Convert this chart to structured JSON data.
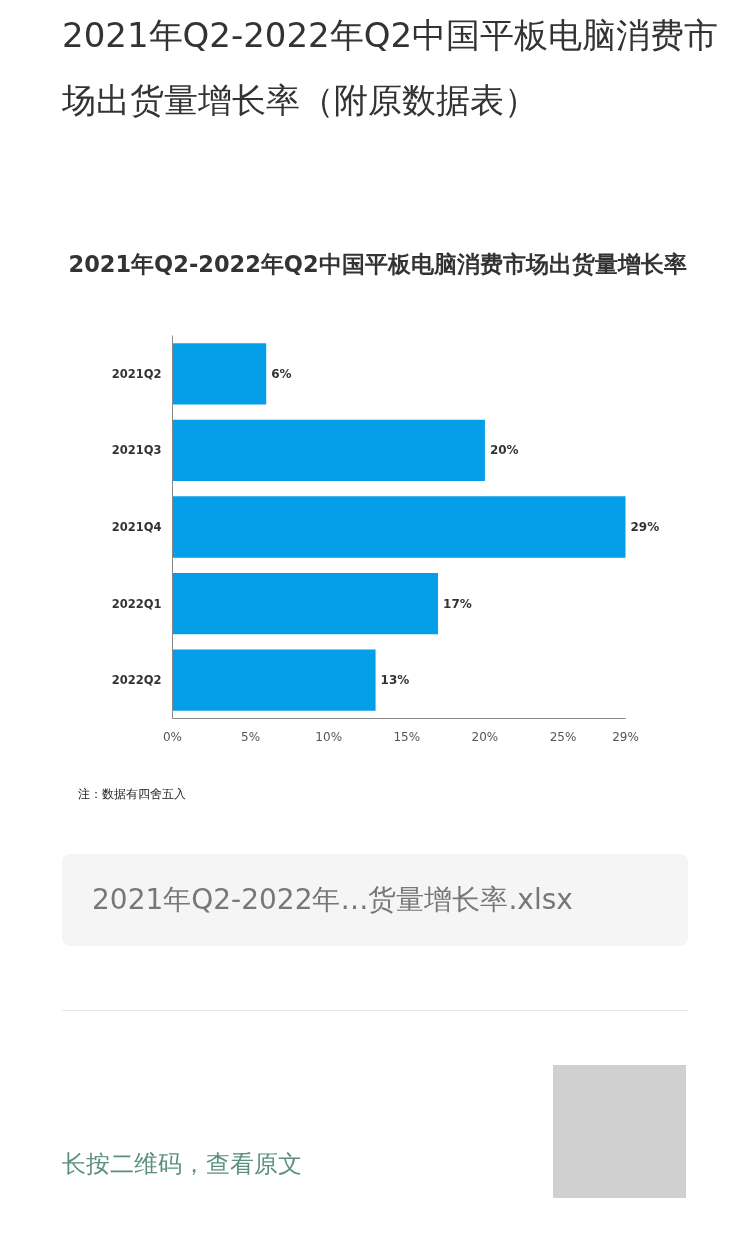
{
  "chart_data": {
    "type": "bar",
    "orientation": "horizontal",
    "title": "2021年Q2-2022年Q2中国平板电脑消费市场出货量增长率（附原数据表）",
    "subtitle": "2021年Q2-2022年Q2中国平板电脑消费市场出货量增长率",
    "categories": [
      "2021Q2",
      "2021Q3",
      "2021Q4",
      "2022Q1",
      "2022Q2"
    ],
    "values": [
      6,
      20,
      29,
      17,
      13
    ],
    "color": "#049fe8",
    "value_labels": [
      "6%",
      "20%",
      "29%",
      "17%",
      "13%"
    ],
    "xlim": [
      0,
      29
    ],
    "xticks": [
      {
        "value": 0,
        "label": "0%"
      },
      {
        "value": 5,
        "label": "5%"
      },
      {
        "value": 10,
        "label": "10%"
      },
      {
        "value": 15,
        "label": "15%"
      },
      {
        "value": 20,
        "label": "20%"
      },
      {
        "value": 25,
        "label": "25%"
      },
      {
        "value": 29,
        "label": "29%"
      }
    ],
    "annotations": [
      "注：数据有四舍五入",
      "2021年Q2-2022年…货量增长率.xlsx",
      "长按二维码，查看原文"
    ]
  }
}
